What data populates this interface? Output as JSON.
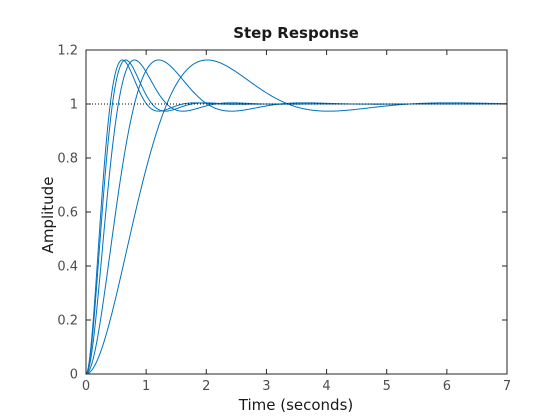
{
  "chart_data": {
    "type": "line",
    "title": "Step Response",
    "xlabel": "Time (seconds)",
    "ylabel": "Amplitude",
    "xlim": [
      0,
      7
    ],
    "ylim": [
      0,
      1.2
    ],
    "xticks": [
      "0",
      "1",
      "2",
      "3",
      "4",
      "5",
      "6",
      "7"
    ],
    "yticks": [
      "0",
      "0.2",
      "0.4",
      "0.6",
      "0.8",
      "1",
      "1.2"
    ],
    "grid": false,
    "reference_line": {
      "y": 1,
      "style": "dotted",
      "color": "#000000"
    },
    "line_color": "#0072BD",
    "series": [
      {
        "zeta": 0.5,
        "wn": 6.0
      },
      {
        "zeta": 0.5,
        "wn": 5.5
      },
      {
        "zeta": 0.5,
        "wn": 4.5
      },
      {
        "zeta": 0.5,
        "wn": 3.0
      },
      {
        "zeta": 0.5,
        "wn": 1.8
      }
    ]
  }
}
